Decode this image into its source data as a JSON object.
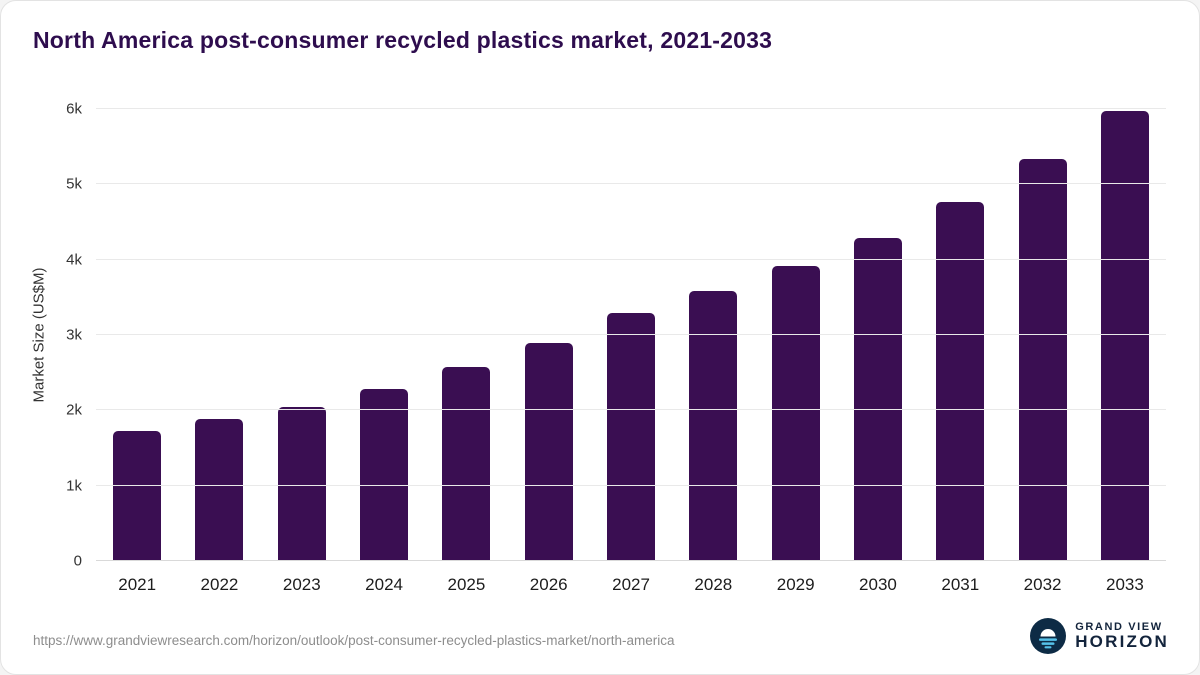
{
  "header": {
    "title": "North America post-consumer recycled plastics market, 2021-2033"
  },
  "chart_data": {
    "type": "bar",
    "title": "North America post-consumer recycled plastics market, 2021-2033",
    "categories": [
      "2021",
      "2022",
      "2023",
      "2024",
      "2025",
      "2026",
      "2027",
      "2028",
      "2029",
      "2030",
      "2031",
      "2032",
      "2033"
    ],
    "values": [
      1720,
      1880,
      2050,
      2290,
      2570,
      2890,
      3290,
      3590,
      3920,
      4290,
      4760,
      5330,
      5980
    ],
    "xlabel": "",
    "ylabel": "Market Size (US$M)",
    "ylim": [
      0,
      6000
    ],
    "yticks": [
      {
        "value": 0,
        "label": "0"
      },
      {
        "value": 1000,
        "label": "1k"
      },
      {
        "value": 2000,
        "label": "2k"
      },
      {
        "value": 3000,
        "label": "3k"
      },
      {
        "value": 4000,
        "label": "4k"
      },
      {
        "value": 5000,
        "label": "5k"
      },
      {
        "value": 6000,
        "label": "6k"
      }
    ],
    "grid": true,
    "legend": "none",
    "bar_color": "#3a0e52"
  },
  "footer": {
    "source_url": "https://www.grandviewresearch.com/horizon/outlook/post-consumer-recycled-plastics-market/north-america",
    "logo": {
      "line1": "GRAND VIEW",
      "line2": "HORIZON",
      "icon": "horizon-sun-icon",
      "icon_bg": "#0d2b45",
      "icon_accent": "#56c1e8"
    }
  }
}
